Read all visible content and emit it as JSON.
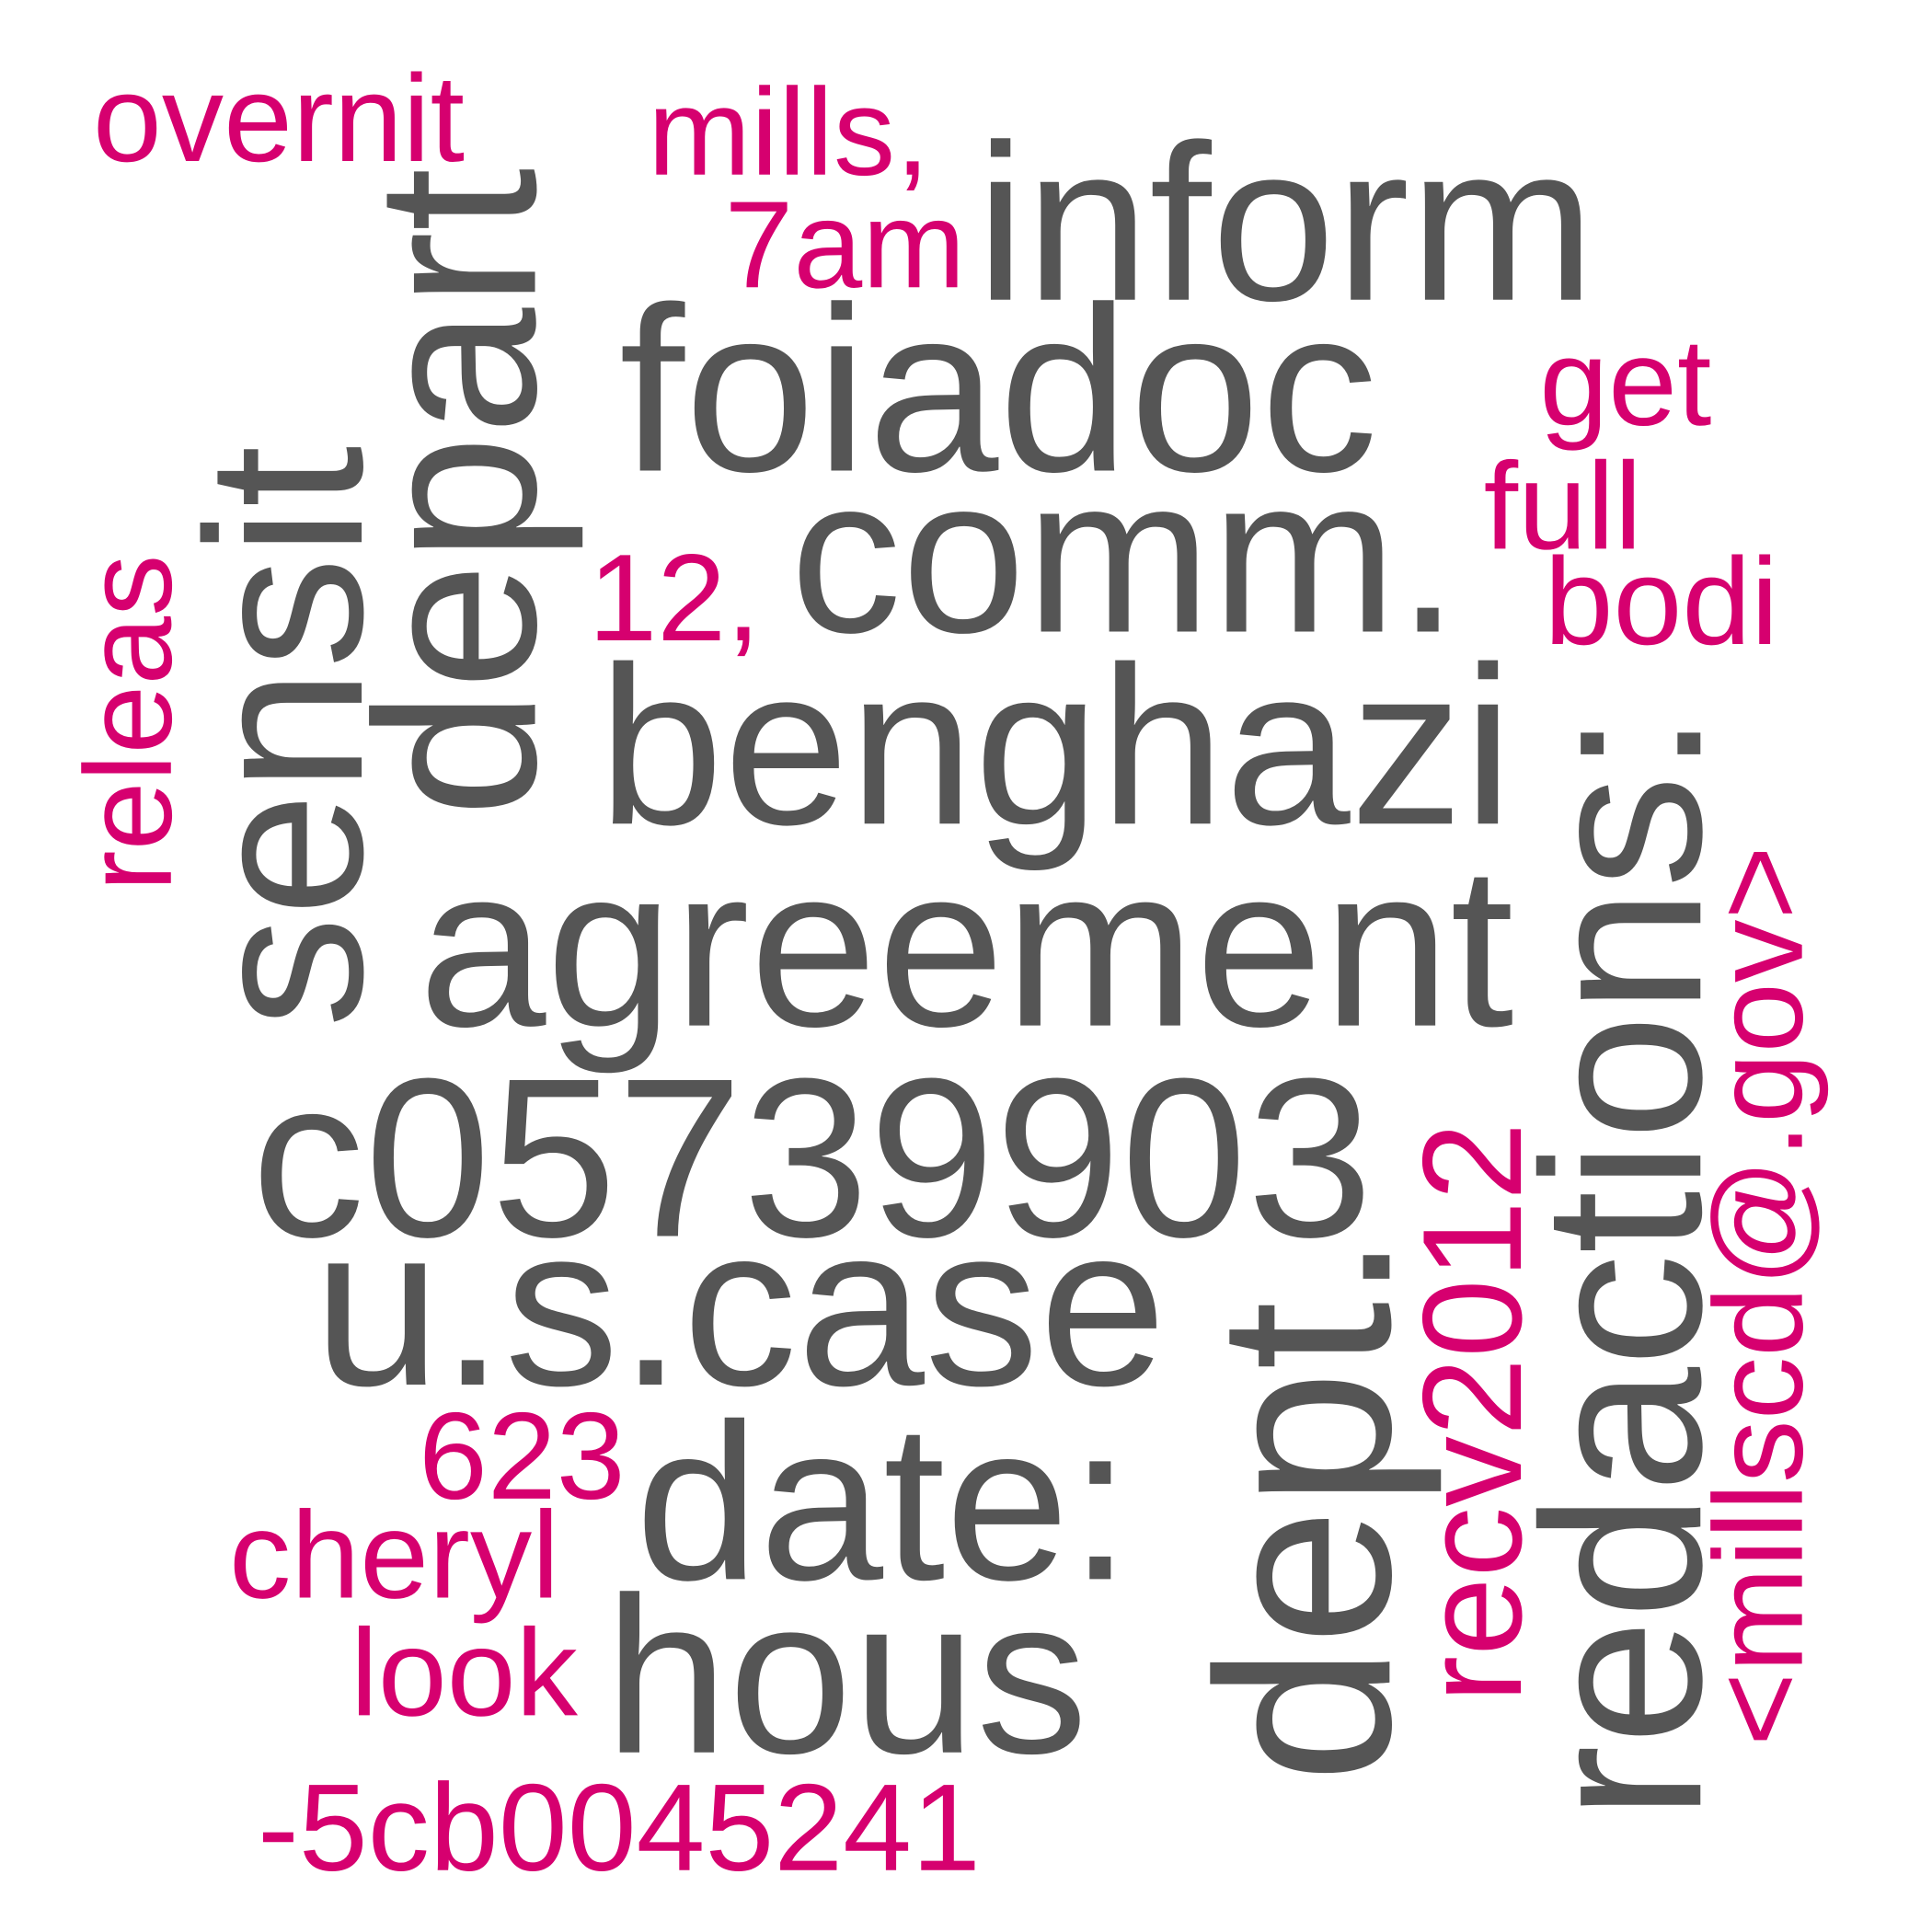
{
  "colors": {
    "primary": "#555555",
    "accent": "#d6006f",
    "background": "#ffffff"
  },
  "words": [
    {
      "text": "overnit",
      "color": "#d6006f"
    },
    {
      "text": "mills,",
      "color": "#d6006f"
    },
    {
      "text": "7am",
      "color": "#d6006f"
    },
    {
      "text": "inform",
      "color": "#555555"
    },
    {
      "text": "depart",
      "color": "#555555"
    },
    {
      "text": "foiadoc",
      "color": "#555555"
    },
    {
      "text": "get",
      "color": "#d6006f"
    },
    {
      "text": "full",
      "color": "#d6006f"
    },
    {
      "text": "bodi",
      "color": "#d6006f"
    },
    {
      "text": "sensit",
      "color": "#555555"
    },
    {
      "text": "releas",
      "color": "#d6006f"
    },
    {
      "text": "12,",
      "color": "#d6006f"
    },
    {
      "text": "comm.",
      "color": "#555555"
    },
    {
      "text": "benghazi",
      "color": "#555555"
    },
    {
      "text": "redactions:",
      "color": "#555555"
    },
    {
      "text": "<millscd@.gov>",
      "color": "#d6006f"
    },
    {
      "text": "agreement",
      "color": "#555555"
    },
    {
      "text": "c05739903",
      "color": "#555555"
    },
    {
      "text": "u.s.case",
      "color": "#555555"
    },
    {
      "text": "dept.",
      "color": "#555555"
    },
    {
      "text": "recv2012",
      "color": "#d6006f"
    },
    {
      "text": "623",
      "color": "#d6006f"
    },
    {
      "text": "date:",
      "color": "#555555"
    },
    {
      "text": "cheryl",
      "color": "#d6006f"
    },
    {
      "text": "look",
      "color": "#d6006f"
    },
    {
      "text": "hous",
      "color": "#555555"
    },
    {
      "text": "-5cb0045241",
      "color": "#d6006f"
    }
  ]
}
